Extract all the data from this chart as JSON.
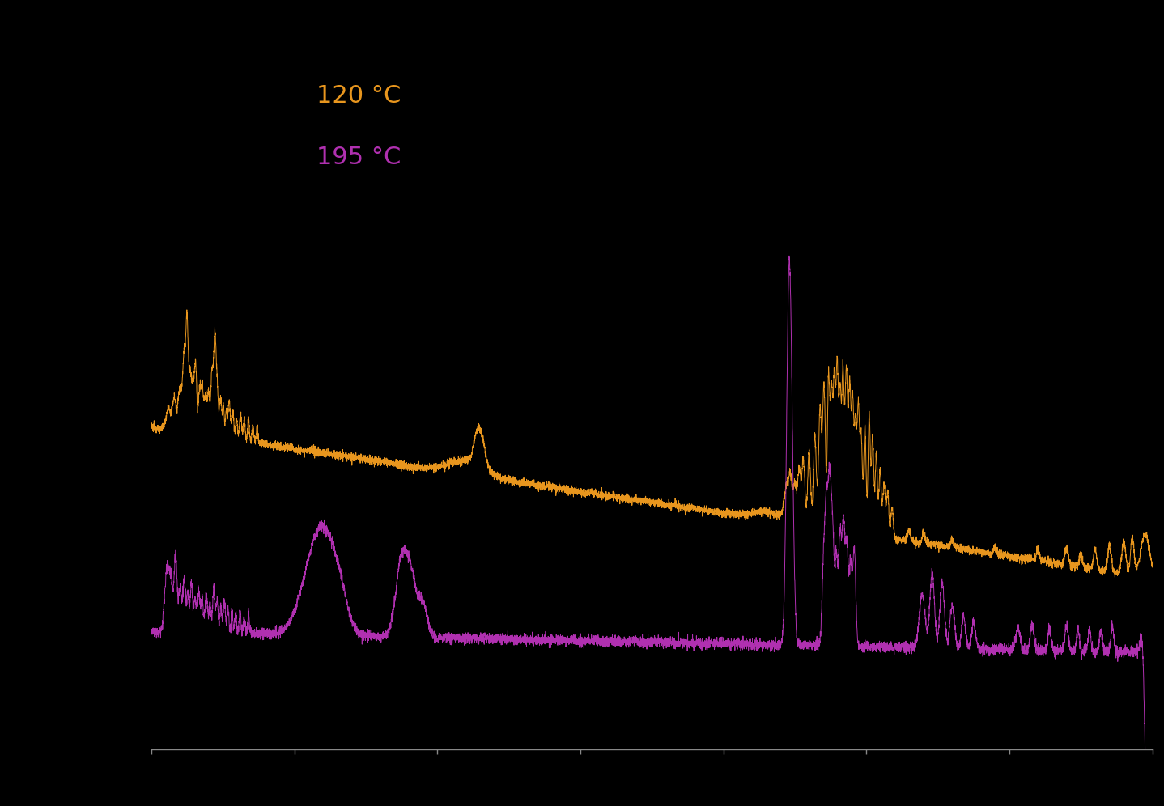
{
  "background_color": "#000000",
  "color_120": "#E8961E",
  "color_195": "#B030B0",
  "legend_120": "120 °C",
  "legend_195": "195 °C",
  "x_min": 500,
  "x_max": 4000,
  "line_width": 0.7,
  "legend_fontsize": 22,
  "axis_color": "#888888"
}
